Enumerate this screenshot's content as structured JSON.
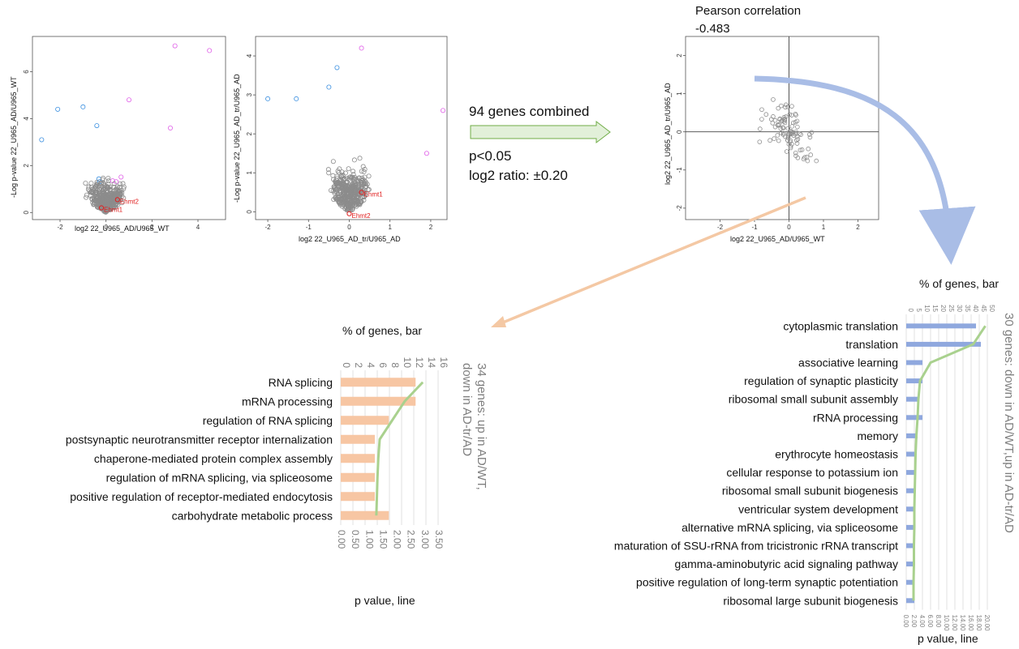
{
  "annotations": {
    "combined": "94 genes combined",
    "pval": "p<0.05",
    "ratio": "log2 ratio: ±0.20",
    "pearson_title": "Pearson correlation",
    "pearson_value": "-0.483"
  },
  "colors": {
    "grey_point": "#8c8c8c",
    "blue_point": "#3a8fe0",
    "pink_point": "#e05fe8",
    "red_label": "#e02020",
    "orange_bar": "#f7c6a3",
    "blue_bar": "#8fa8de",
    "green_line": "#a9d18e",
    "green_arrow_fill": "#e2f0d9",
    "green_arrow_stroke": "#70ad47",
    "blue_curve": "#a9bde6",
    "orange_arrow": "#f4c8a4"
  },
  "chart_data": [
    {
      "type": "scatter",
      "xlabel": "log2 22_U965_AD/U965_WT",
      "ylabel": "-Log p-value 22_U965_AD/U965_WT",
      "xlim": [
        -3.2,
        5.2
      ],
      "ylim": [
        -0.3,
        7.5
      ],
      "xticks": [
        "-2",
        "0",
        "2",
        "4"
      ],
      "xtick_values": [
        -2,
        0,
        2,
        4
      ],
      "yticks": [
        "0",
        "2",
        "4",
        "6"
      ],
      "ytick_values": [
        0,
        2,
        4,
        6
      ],
      "labels": [
        {
          "text": "Ehmt2",
          "x": 0.5,
          "y": 0.55
        },
        {
          "text": "Ehmt1",
          "x": -0.2,
          "y": 0.2
        }
      ]
    },
    {
      "type": "scatter",
      "xlabel": "log2 22_U965_AD_tr/U965_AD",
      "ylabel": "-Log p-value 22_U965_AD_tr/U965_AD",
      "xlim": [
        -2.3,
        2.4
      ],
      "ylim": [
        -0.2,
        4.5
      ],
      "xticks": [
        "-2",
        "-1",
        "0",
        "1",
        "2"
      ],
      "xtick_values": [
        -2,
        -1,
        0,
        1,
        2
      ],
      "yticks": [
        "0",
        "1",
        "2",
        "3",
        "4"
      ],
      "ytick_values": [
        0,
        1,
        2,
        3,
        4
      ],
      "labels": [
        {
          "text": "Ehmt1",
          "x": 0.3,
          "y": 0.5
        },
        {
          "text": "Ehmt2",
          "x": 0.0,
          "y": -0.05
        }
      ]
    },
    {
      "type": "scatter",
      "xlabel": "log2 22_U965_AD/U965_WT",
      "ylabel": "log2 22_U965_AD_tr/U965_AD",
      "xlim": [
        -3.0,
        2.6
      ],
      "ylim": [
        -2.3,
        2.5
      ],
      "xticks": [
        "-2",
        "-1",
        "0",
        "1",
        "2"
      ],
      "xtick_values": [
        -2,
        -1,
        0,
        1,
        2
      ],
      "yticks": [
        "-2",
        "-1",
        "0",
        "1",
        "2"
      ],
      "ytick_values": [
        -2,
        -1,
        0,
        1,
        2
      ]
    },
    {
      "type": "bar",
      "title": "% of genes, bar",
      "xlabel": "p value, line",
      "side_label": "34 genes: up in AD/WT, down in AD-tr/AD",
      "categories": [
        "RNA splicing",
        "mRNA processing",
        "regulation of RNA splicing",
        "postsynaptic neurotransmitter receptor internalization",
        "chaperone-mediated protein complex assembly",
        "regulation of mRNA splicing, via spliceosome",
        "positive regulation of receptor-mediated endocytosis",
        "carbohydrate metabolic process"
      ],
      "series": [
        {
          "name": "% of genes, bar",
          "values": [
            12.3,
            12.3,
            7.9,
            5.6,
            5.6,
            5.6,
            5.6,
            7.9
          ]
        },
        {
          "name": "p value, line",
          "values": [
            2.95,
            2.3,
            1.85,
            1.4,
            1.35,
            1.32,
            1.3,
            1.28
          ]
        }
      ],
      "bar_ticks": [
        "0",
        "2",
        "4",
        "6",
        "8",
        "10",
        "12",
        "14",
        "16"
      ],
      "bar_max": 16,
      "line_ticks": [
        "0.00",
        "0.50",
        "1.00",
        "1.50",
        "2.00",
        "2.50",
        "3.00",
        "3.50"
      ],
      "line_max": 3.5
    },
    {
      "type": "bar",
      "title": "% of genes, bar",
      "xlabel": "p value, line",
      "side_label": "30 genes: down in AD/WT,up in AD-tr/AD",
      "categories": [
        "cytoplasmic translation",
        "translation",
        "associative learning",
        "regulation of synaptic plasticity",
        "ribosomal small subunit assembly",
        "rRNA processing",
        "memory",
        "erythrocyte homeostasis",
        "cellular response to potassium ion",
        "ribosomal small subunit biogenesis",
        "ventricular system development",
        "alternative mRNA splicing, via spliceosome",
        "maturation of SSU-rRNA from tricistronic rRNA transcript",
        "gamma-aminobutyric acid signaling pathway",
        "positive regulation of long-term synaptic potentiation",
        "ribosomal large subunit biogenesis"
      ],
      "series": [
        {
          "name": "% of genes, bar",
          "values": [
            43,
            46,
            10,
            10,
            7,
            10,
            7,
            5,
            5,
            5,
            5,
            5,
            5,
            5,
            5,
            5
          ]
        },
        {
          "name": "p value, line",
          "values": [
            19.5,
            16.5,
            6.0,
            3.4,
            3.0,
            2.8,
            2.5,
            2.3,
            2.2,
            2.1,
            2.0,
            2.0,
            1.9,
            1.9,
            1.8,
            1.8
          ]
        }
      ],
      "bar_ticks": [
        "0",
        "5",
        "10",
        "15",
        "20",
        "25",
        "30",
        "35",
        "40",
        "45",
        "50"
      ],
      "bar_max": 50,
      "line_ticks": [
        "0.00",
        "2.00",
        "4.00",
        "6.00",
        "8.00",
        "10.00",
        "12.00",
        "14.00",
        "16.00",
        "18.00",
        "20.00"
      ],
      "line_max": 20
    }
  ]
}
